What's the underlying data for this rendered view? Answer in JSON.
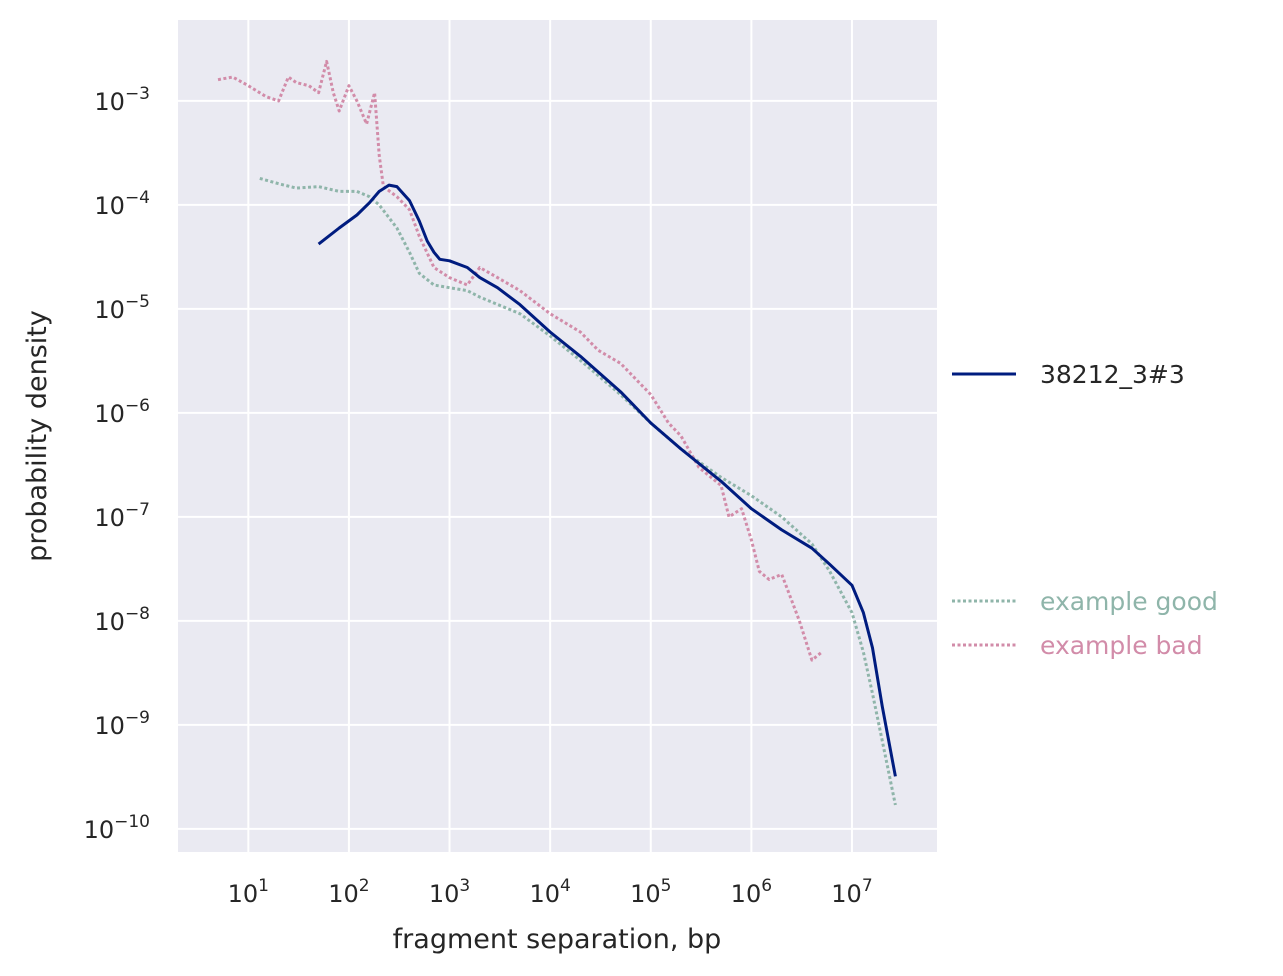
{
  "chart_data": {
    "type": "line",
    "xlabel": "fragment separation, bp",
    "ylabel": "probability density",
    "xscale": "log",
    "yscale": "log",
    "xlim": [
      2,
      70000000
    ],
    "ylim": [
      6e-11,
      0.006
    ],
    "grid": true,
    "legend_placement": "right",
    "x_ticks": [
      {
        "value": 10,
        "base": "10",
        "exp": "1"
      },
      {
        "value": 100,
        "base": "10",
        "exp": "2"
      },
      {
        "value": 1000,
        "base": "10",
        "exp": "3"
      },
      {
        "value": 10000,
        "base": "10",
        "exp": "4"
      },
      {
        "value": 100000,
        "base": "10",
        "exp": "5"
      },
      {
        "value": 1000000,
        "base": "10",
        "exp": "6"
      },
      {
        "value": 10000000,
        "base": "10",
        "exp": "7"
      }
    ],
    "y_ticks": [
      {
        "value": 0.001,
        "base": "10",
        "exp": "−3"
      },
      {
        "value": 0.0001,
        "base": "10",
        "exp": "−4"
      },
      {
        "value": 1e-05,
        "base": "10",
        "exp": "−5"
      },
      {
        "value": 1e-06,
        "base": "10",
        "exp": "−6"
      },
      {
        "value": 1e-07,
        "base": "10",
        "exp": "−7"
      },
      {
        "value": 1e-08,
        "base": "10",
        "exp": "−8"
      },
      {
        "value": 1e-09,
        "base": "10",
        "exp": "−9"
      },
      {
        "value": 1e-10,
        "base": "10",
        "exp": "−10"
      }
    ],
    "series": [
      {
        "name": "38212_3#3",
        "color": "#001c7f",
        "style": "solid",
        "points": [
          [
            50,
            4.2e-05
          ],
          [
            80,
            6e-05
          ],
          [
            120,
            8e-05
          ],
          [
            160,
            0.000105
          ],
          [
            200,
            0.000135
          ],
          [
            250,
            0.000155
          ],
          [
            300,
            0.00015
          ],
          [
            400,
            0.00011
          ],
          [
            500,
            7e-05
          ],
          [
            600,
            4.5e-05
          ],
          [
            700,
            3.5e-05
          ],
          [
            800,
            3e-05
          ],
          [
            1000,
            2.9e-05
          ],
          [
            1500,
            2.5e-05
          ],
          [
            2000,
            2e-05
          ],
          [
            3000,
            1.6e-05
          ],
          [
            5000,
            1.1e-05
          ],
          [
            10000,
            6e-06
          ],
          [
            20000,
            3.5e-06
          ],
          [
            50000,
            1.6e-06
          ],
          [
            100000,
            8e-07
          ],
          [
            200000,
            4.5e-07
          ],
          [
            500000,
            2.2e-07
          ],
          [
            1000000,
            1.2e-07
          ],
          [
            2000000,
            7.5e-08
          ],
          [
            4000000,
            5e-08
          ],
          [
            6000000,
            3.5e-08
          ],
          [
            10000000,
            2.2e-08
          ],
          [
            13000000,
            1.2e-08
          ],
          [
            16000000,
            5.5e-09
          ],
          [
            20000000,
            1.5e-09
          ],
          [
            27000000,
            3.2e-10
          ]
        ]
      },
      {
        "name": "example good",
        "color": "#8fb5aa",
        "style": "dotted",
        "points": [
          [
            13,
            0.00018
          ],
          [
            20,
            0.00016
          ],
          [
            30,
            0.000145
          ],
          [
            50,
            0.00015
          ],
          [
            80,
            0.000135
          ],
          [
            120,
            0.000135
          ],
          [
            160,
            0.00012
          ],
          [
            200,
            0.0001
          ],
          [
            300,
            6e-05
          ],
          [
            400,
            3.5e-05
          ],
          [
            500,
            2.2e-05
          ],
          [
            700,
            1.7e-05
          ],
          [
            1000,
            1.6e-05
          ],
          [
            1500,
            1.5e-05
          ],
          [
            2000,
            1.3e-05
          ],
          [
            5000,
            9e-06
          ],
          [
            10000,
            5.5e-06
          ],
          [
            20000,
            3.2e-06
          ],
          [
            50000,
            1.5e-06
          ],
          [
            100000,
            8e-07
          ],
          [
            200000,
            4.5e-07
          ],
          [
            500000,
            2.4e-07
          ],
          [
            1000000,
            1.6e-07
          ],
          [
            2000000,
            1e-07
          ],
          [
            4000000,
            5.5e-08
          ],
          [
            6000000,
            3e-08
          ],
          [
            10000000,
            1.2e-08
          ],
          [
            13000000,
            5e-09
          ],
          [
            16000000,
            2e-09
          ],
          [
            20000000,
            7e-10
          ],
          [
            27000000,
            1.7e-10
          ]
        ]
      },
      {
        "name": "example bad",
        "color": "#d28ca9",
        "style": "dotted",
        "points": [
          [
            5,
            0.0016
          ],
          [
            7,
            0.0017
          ],
          [
            10,
            0.0014
          ],
          [
            15,
            0.0011
          ],
          [
            20,
            0.001
          ],
          [
            25,
            0.0017
          ],
          [
            30,
            0.0015
          ],
          [
            40,
            0.0014
          ],
          [
            50,
            0.0012
          ],
          [
            60,
            0.0024
          ],
          [
            70,
            0.0012
          ],
          [
            80,
            0.0008
          ],
          [
            100,
            0.0014
          ],
          [
            120,
            0.001
          ],
          [
            150,
            0.0006
          ],
          [
            180,
            0.0012
          ],
          [
            200,
            0.0003
          ],
          [
            220,
            0.00015
          ],
          [
            300,
            0.00012
          ],
          [
            400,
            9e-05
          ],
          [
            500,
            5e-05
          ],
          [
            700,
            2.5e-05
          ],
          [
            1000,
            2e-05
          ],
          [
            1500,
            1.7e-05
          ],
          [
            2000,
            2.5e-05
          ],
          [
            3000,
            2e-05
          ],
          [
            5000,
            1.5e-05
          ],
          [
            10000,
            9e-06
          ],
          [
            20000,
            6e-06
          ],
          [
            30000,
            4e-06
          ],
          [
            50000,
            3e-06
          ],
          [
            100000,
            1.5e-06
          ],
          [
            150000,
            8e-07
          ],
          [
            200000,
            6e-07
          ],
          [
            300000,
            3e-07
          ],
          [
            500000,
            2e-07
          ],
          [
            600000,
            1e-07
          ],
          [
            800000,
            1.2e-07
          ],
          [
            1000000,
            6e-08
          ],
          [
            1200000,
            3e-08
          ],
          [
            1500000,
            2.5e-08
          ],
          [
            2000000,
            2.8e-08
          ],
          [
            2500000,
            1.6e-08
          ],
          [
            3000000,
            1e-08
          ],
          [
            4000000,
            4.2e-09
          ],
          [
            5000000,
            5e-09
          ]
        ]
      }
    ]
  }
}
